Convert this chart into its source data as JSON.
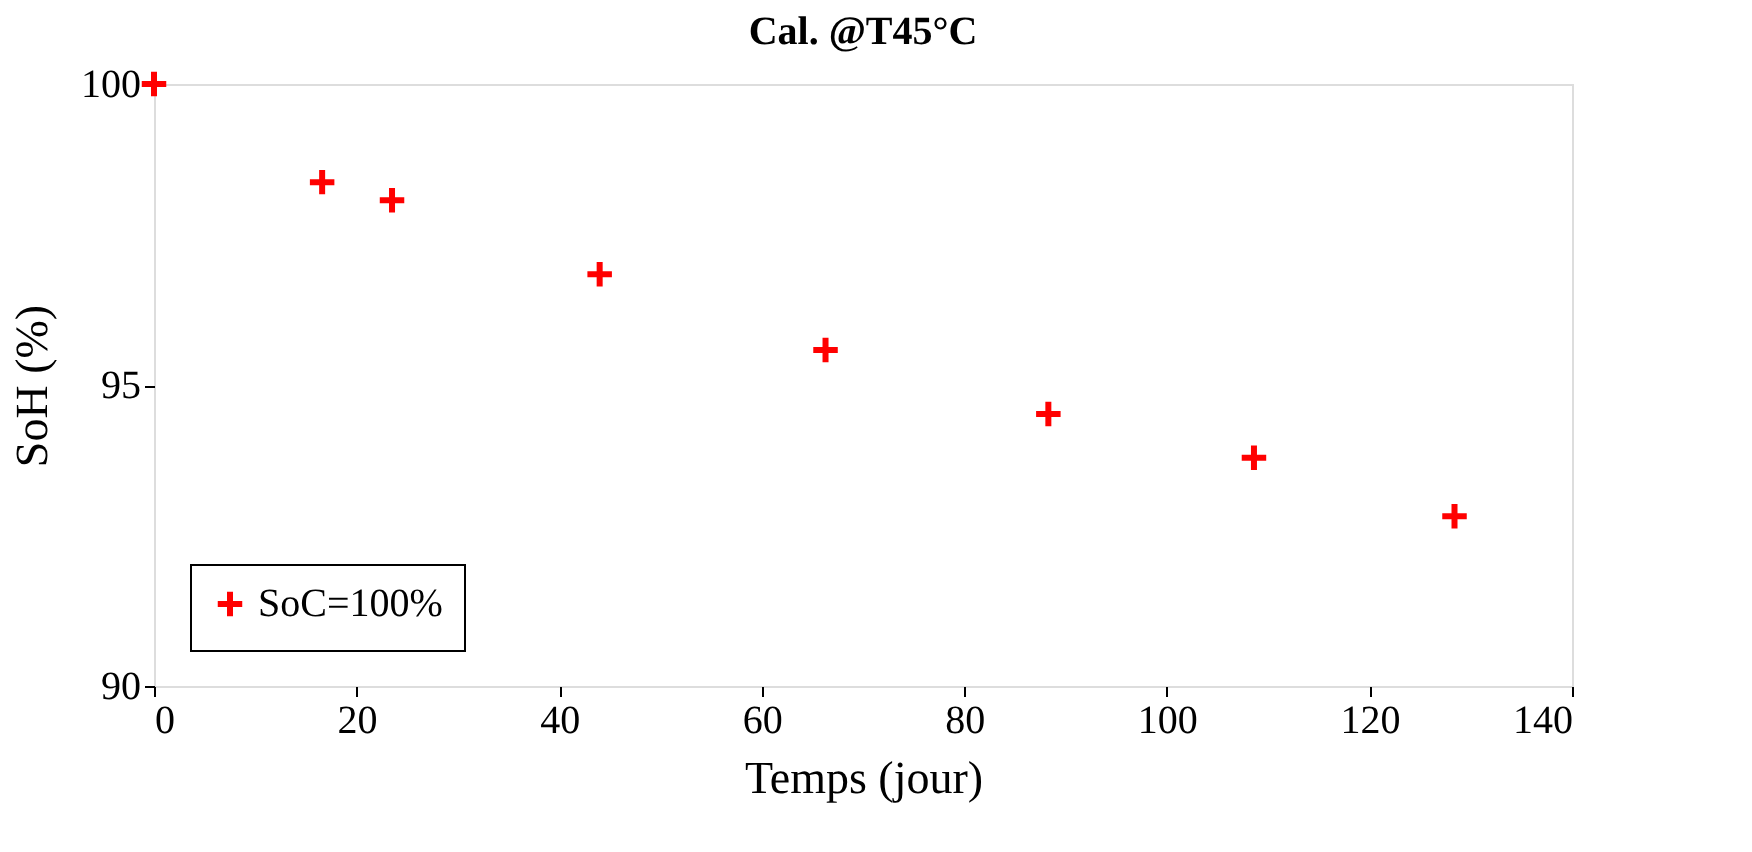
{
  "chart_data": {
    "type": "scatter",
    "title": "Cal. @T45°C",
    "xlabel": "Temps (jour)",
    "ylabel": "SoH (%)",
    "x": [
      0,
      16.6,
      23.5,
      44.0,
      66.3,
      88.3,
      108.6,
      128.4
    ],
    "series": [
      {
        "name": "SoC=100%",
        "color": "#ff0000",
        "values": [
          100,
          98.37,
          98.07,
          96.84,
          95.58,
          94.52,
          93.79,
          92.82
        ]
      }
    ],
    "xlim": [
      0,
      140
    ],
    "xticks": [
      0,
      20,
      40,
      60,
      80,
      100,
      120,
      140
    ],
    "ylim": [
      90,
      100
    ],
    "yticks": [
      90,
      95,
      100
    ],
    "grid": false,
    "legend": "bottom left",
    "marker": "cross"
  }
}
